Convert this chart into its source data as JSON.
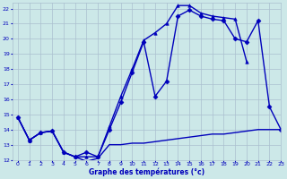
{
  "xlabel": "Graphe des températures (°c)",
  "background_color": "#cce8e8",
  "grid_color": "#aabfcf",
  "line_color": "#0000bb",
  "xlim": [
    -0.5,
    23
  ],
  "ylim": [
    12,
    22.4
  ],
  "xticks": [
    0,
    1,
    2,
    3,
    4,
    5,
    6,
    7,
    8,
    9,
    10,
    11,
    12,
    13,
    14,
    15,
    16,
    17,
    18,
    19,
    20,
    21,
    22,
    23
  ],
  "yticks": [
    12,
    13,
    14,
    15,
    16,
    17,
    18,
    19,
    20,
    21,
    22
  ],
  "series": [
    {
      "x": [
        0,
        1,
        2,
        3,
        4,
        5,
        6,
        7,
        8,
        9,
        10,
        11,
        12,
        13,
        14,
        15,
        16,
        17,
        18,
        19,
        20,
        21,
        22,
        23
      ],
      "y": [
        14.8,
        13.3,
        13.8,
        13.9,
        12.5,
        12.2,
        11.9,
        12.1,
        13.0,
        13.0,
        13.1,
        13.1,
        13.2,
        13.3,
        13.4,
        13.5,
        13.6,
        13.7,
        13.7,
        13.8,
        13.9,
        14.0,
        14.0,
        14.0
      ],
      "marker": null,
      "lw": 1.0
    },
    {
      "x": [
        0,
        1,
        2,
        3,
        4,
        5,
        6,
        7,
        8,
        9,
        10,
        11,
        12,
        13,
        14,
        15,
        16,
        17,
        18,
        19,
        20,
        21,
        22,
        23
      ],
      "y": [
        14.8,
        13.3,
        13.8,
        13.9,
        12.5,
        12.2,
        12.5,
        12.2,
        14.0,
        15.8,
        17.8,
        19.8,
        16.2,
        17.2,
        21.5,
        21.9,
        21.5,
        21.3,
        21.2,
        20.0,
        19.8,
        21.2,
        15.5,
        14.0
      ],
      "marker": "D",
      "lw": 1.0
    },
    {
      "x": [
        0,
        1,
        2,
        3,
        4,
        5,
        6,
        7,
        8,
        9,
        10,
        11,
        12,
        13,
        14,
        15,
        16,
        17,
        18,
        19,
        20
      ],
      "y": [
        14.8,
        13.3,
        13.8,
        13.9,
        12.5,
        12.2,
        12.2,
        12.2,
        14.2,
        16.2,
        18.0,
        19.9,
        20.4,
        21.0,
        22.2,
        22.2,
        21.7,
        21.5,
        21.4,
        21.3,
        18.5
      ],
      "marker": "^",
      "lw": 1.0
    }
  ]
}
